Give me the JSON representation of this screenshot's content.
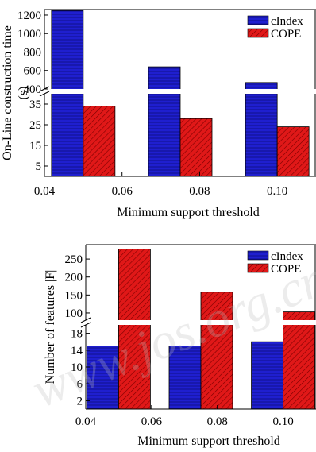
{
  "colors": {
    "cindex": "#1f1fcf",
    "cope": "#e01818",
    "axis": "#000000"
  },
  "watermark": "www.jos.org.cn",
  "chart_data": [
    {
      "type": "bar",
      "name": "construction-time",
      "xlabel": "Minimum support threshold",
      "ylabel_lines": [
        "On-Line construction time",
        "(s)"
      ],
      "categories": [
        0.05,
        0.075,
        0.1
      ],
      "xticks": [
        "0.04",
        "0.06",
        "0.08",
        "0.10"
      ],
      "xlim": [
        0.04,
        0.11
      ],
      "broken_axis": true,
      "upper_ylim": [
        400,
        1260
      ],
      "upper_yticks": [
        "400",
        "600",
        "800",
        "1000",
        "1200"
      ],
      "lower_ylim": [
        0,
        40
      ],
      "lower_yticks": [
        "5",
        "15",
        "25",
        "35"
      ],
      "legend_position": "top-right",
      "series": [
        {
          "name": "cIndex",
          "values": [
            1250,
            640,
            470
          ]
        },
        {
          "name": "COPE",
          "values": [
            34,
            28,
            24
          ]
        }
      ]
    },
    {
      "type": "bar",
      "name": "number-of-features",
      "xlabel": "Minimum support threshold",
      "ylabel_lines": [
        "Number of features |F|"
      ],
      "categories": [
        0.05,
        0.075,
        0.1
      ],
      "xticks": [
        "0.04",
        "0.06",
        "0.08",
        "0.10"
      ],
      "xlim": [
        0.04,
        0.11
      ],
      "broken_axis": true,
      "upper_ylim": [
        80,
        290
      ],
      "upper_yticks": [
        "100",
        "150",
        "200",
        "250"
      ],
      "lower_ylim": [
        0,
        20
      ],
      "lower_yticks": [
        "2",
        "6",
        "10",
        "14",
        "18"
      ],
      "legend_position": "top-right",
      "series": [
        {
          "name": "cIndex",
          "values": [
            15,
            15,
            16
          ]
        },
        {
          "name": "COPE",
          "values": [
            278,
            158,
            103
          ]
        }
      ]
    }
  ]
}
